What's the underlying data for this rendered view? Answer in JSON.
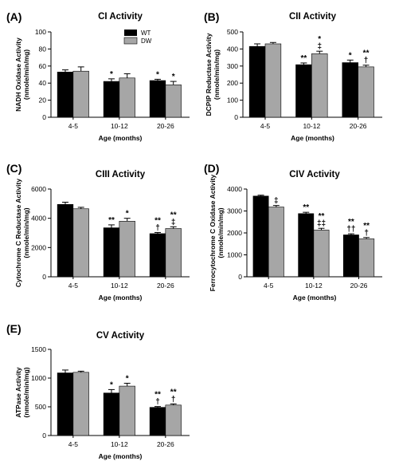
{
  "legend": [
    {
      "name": "WT",
      "color": "#000000"
    },
    {
      "name": "DW",
      "color": "#a6a6a6"
    }
  ],
  "chart_data": [
    {
      "letter": "(A)",
      "type": "bar",
      "title": "CI Activity",
      "ylabel": [
        "NADH Oxidase Activity",
        "(nmole/min/mg)"
      ],
      "xlabel": "Age  (months)",
      "categories": [
        "4-5",
        "10-12",
        "20-26"
      ],
      "ylim": [
        0,
        100
      ],
      "yticks": [
        0,
        20,
        40,
        60,
        80,
        100
      ],
      "series": [
        {
          "name": "WT",
          "color": "#000000",
          "values": [
            53,
            42,
            43
          ],
          "errors": [
            2.5,
            3,
            1.5
          ],
          "annotations": [
            "",
            "*",
            "*"
          ]
        },
        {
          "name": "DW",
          "color": "#a6a6a6",
          "values": [
            54,
            46,
            38
          ],
          "errors": [
            5,
            5,
            4
          ],
          "annotations": [
            "",
            "",
            "*"
          ]
        }
      ]
    },
    {
      "letter": "(B)",
      "type": "bar",
      "title": "CII Activity",
      "ylabel": [
        "DCPIP Reductase Activity",
        "(nmole/min/mg)"
      ],
      "xlabel": "Age  (months)",
      "categories": [
        "4-5",
        "10-12",
        "20-26"
      ],
      "ylim": [
        0,
        500
      ],
      "yticks": [
        0,
        100,
        200,
        300,
        400,
        500
      ],
      "series": [
        {
          "name": "WT",
          "color": "#000000",
          "values": [
            415,
            308,
            320
          ],
          "errors": [
            15,
            10,
            15
          ],
          "annotations": [
            "",
            "**",
            "*"
          ]
        },
        {
          "name": "DW",
          "color": "#a6a6a6",
          "values": [
            430,
            372,
            295
          ],
          "errors": [
            8,
            15,
            10
          ],
          "annotations": [
            "",
            "*\n‡",
            "**\n†"
          ]
        }
      ]
    },
    {
      "letter": "(C)",
      "type": "bar",
      "title": "CIII Activity",
      "ylabel": [
        "Cytochrome C Reductase Activity",
        "(nmole/min/mg)"
      ],
      "xlabel": "Age  (months)",
      "categories": [
        "4-5",
        "10-12",
        "20-26"
      ],
      "ylim": [
        0,
        6000
      ],
      "yticks": [
        0,
        2000,
        4000,
        6000
      ],
      "series": [
        {
          "name": "WT",
          "color": "#000000",
          "values": [
            4950,
            3350,
            2950
          ],
          "errors": [
            150,
            200,
            80
          ],
          "annotations": [
            "",
            "**",
            "**\n†"
          ]
        },
        {
          "name": "DW",
          "color": "#a6a6a6",
          "values": [
            4650,
            3800,
            3300
          ],
          "errors": [
            100,
            200,
            120
          ],
          "annotations": [
            "",
            "*",
            "**\n‡"
          ]
        }
      ]
    },
    {
      "letter": "(D)",
      "type": "bar",
      "title": "CIV Activity",
      "ylabel": [
        "Ferrocytochrome C Oxidase Activity",
        "(nmole/min/mg)"
      ],
      "xlabel": "Age  (months)",
      "categories": [
        "4-5",
        "10-12",
        "20-26"
      ],
      "ylim": [
        0,
        4000
      ],
      "yticks": [
        0,
        1000,
        2000,
        3000,
        4000
      ],
      "series": [
        {
          "name": "WT",
          "color": "#000000",
          "values": [
            3680,
            2880,
            1910
          ],
          "errors": [
            40,
            60,
            50
          ],
          "annotations": [
            "",
            "**",
            "**\n††"
          ]
        },
        {
          "name": "DW",
          "color": "#a6a6a6",
          "values": [
            3180,
            2130,
            1730
          ],
          "errors": [
            70,
            80,
            60
          ],
          "annotations": [
            "‡",
            "**\n‡‡",
            "**\n†"
          ]
        }
      ]
    },
    {
      "letter": "(E)",
      "type": "bar",
      "title": "CV Activity",
      "ylabel": [
        "ATPase Activity",
        "(nmole/min/mg)"
      ],
      "xlabel": "Age  (months)",
      "categories": [
        "4-5",
        "10-12",
        "20-26"
      ],
      "ylim": [
        0,
        1500
      ],
      "yticks": [
        0,
        500,
        1000,
        1500
      ],
      "series": [
        {
          "name": "WT",
          "color": "#000000",
          "values": [
            1090,
            740,
            490
          ],
          "errors": [
            50,
            60,
            15
          ],
          "annotations": [
            "",
            "*",
            "**\n†"
          ]
        },
        {
          "name": "DW",
          "color": "#a6a6a6",
          "values": [
            1100,
            860,
            530
          ],
          "errors": [
            20,
            50,
            20
          ],
          "annotations": [
            "",
            "*",
            "**\n†"
          ]
        }
      ]
    }
  ]
}
